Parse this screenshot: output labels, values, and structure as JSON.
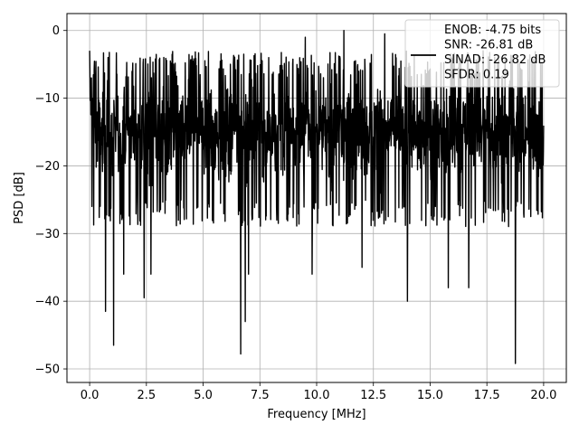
{
  "chart_data": {
    "type": "line",
    "xlabel": "Frequency [MHz]",
    "ylabel": "PSD [dB]",
    "xlim": [
      -1,
      21
    ],
    "ylim": [
      -52,
      2.5
    ],
    "xticks": [
      0.0,
      2.5,
      5.0,
      7.5,
      10.0,
      12.5,
      15.0,
      17.5,
      20.0
    ],
    "xtick_labels": [
      "0.0",
      "2.5",
      "5.0",
      "7.5",
      "10.0",
      "12.5",
      "15.0",
      "17.5",
      "20.0"
    ],
    "yticks": [
      0,
      -10,
      -20,
      -30,
      -40,
      -50
    ],
    "ytick_labels": [
      "0",
      "−10",
      "−20",
      "−30",
      "−40",
      "−50"
    ],
    "grid": true,
    "legend_position": "top-right",
    "legend_lines": [
      "ENOB: -4.75 bits",
      "SNR: -26.81 dB",
      "SINAD: -26.82 dB",
      "SFDR: 0.19"
    ],
    "series_color": "#000000",
    "series": [
      {
        "x_start": 0,
        "x_end": 20,
        "noise_floor_envelope": {
          "upper_approx": -5,
          "mean_approx": -15,
          "lower_approx": -25
        },
        "dips": [
          {
            "x": 0.7,
            "y": -41.5
          },
          {
            "x": 1.05,
            "y": -46.5
          },
          {
            "x": 1.5,
            "y": -36
          },
          {
            "x": 2.4,
            "y": -39.5
          },
          {
            "x": 2.7,
            "y": -36
          },
          {
            "x": 6.65,
            "y": -47.8
          },
          {
            "x": 6.85,
            "y": -43
          },
          {
            "x": 7.0,
            "y": -36
          },
          {
            "x": 14.0,
            "y": -40
          },
          {
            "x": 15.8,
            "y": -38
          },
          {
            "x": 16.7,
            "y": -38
          },
          {
            "x": 18.75,
            "y": -49.2
          },
          {
            "x": 12.0,
            "y": -35
          },
          {
            "x": 9.8,
            "y": -36
          }
        ],
        "peaks": [
          {
            "x": 0.0,
            "y": -3
          },
          {
            "x": 11.2,
            "y": 0.0
          },
          {
            "x": 13.0,
            "y": -0.5
          },
          {
            "x": 9.5,
            "y": -1
          }
        ]
      }
    ]
  }
}
